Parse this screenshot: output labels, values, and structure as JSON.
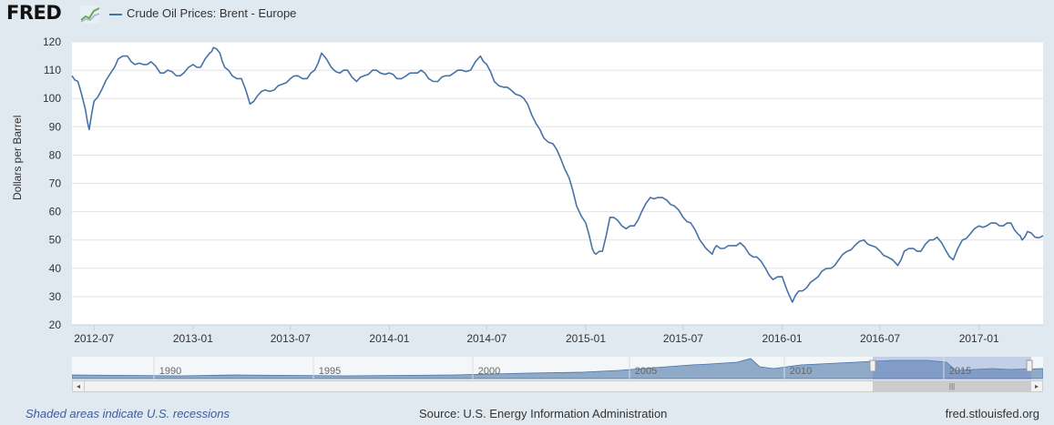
{
  "header": {
    "logo_text": "FRED",
    "legend_label": "Crude Oil Prices: Brent - Europe",
    "series_color": "#4572a7"
  },
  "footer": {
    "recession_note": "Shaded areas indicate U.S. recessions",
    "source": "Source: U.S. Energy Information Administration",
    "site": "fred.stlouisfed.org"
  },
  "navigator": {
    "tick_labels": [
      "1990",
      "1995",
      "2000",
      "2005",
      "2010",
      "2015"
    ],
    "handle_glyph": "|||",
    "left_arrow": "◂",
    "right_arrow": "▸"
  },
  "chart_data": {
    "type": "line",
    "title": "",
    "xlabel": "",
    "ylabel": "Dollars per Barrel",
    "ylim": [
      20,
      120
    ],
    "yticks": [
      20,
      30,
      40,
      50,
      60,
      70,
      80,
      90,
      100,
      110,
      120
    ],
    "xticks": [
      "2012-07",
      "2013-01",
      "2013-07",
      "2014-01",
      "2014-07",
      "2015-01",
      "2015-07",
      "2016-01",
      "2016-07",
      "2017-01"
    ],
    "xlim": [
      "2012-05-21",
      "2017-04-30"
    ],
    "grid": "horizontal",
    "series": [
      {
        "name": "Crude Oil Prices: Brent - Europe",
        "x": [
          "2012-05-21",
          "2012-06-01",
          "2012-06-15",
          "2012-06-22",
          "2012-07-01",
          "2012-07-15",
          "2012-08-01",
          "2012-08-15",
          "2012-09-01",
          "2012-09-15",
          "2012-10-01",
          "2012-10-15",
          "2012-11-01",
          "2012-11-15",
          "2012-12-01",
          "2012-12-15",
          "2013-01-01",
          "2013-01-15",
          "2013-02-01",
          "2013-02-08",
          "2013-02-20",
          "2013-03-01",
          "2013-03-15",
          "2013-04-01",
          "2013-04-17",
          "2013-05-01",
          "2013-05-15",
          "2013-06-01",
          "2013-06-15",
          "2013-07-01",
          "2013-07-15",
          "2013-08-01",
          "2013-08-15",
          "2013-08-28",
          "2013-09-15",
          "2013-10-01",
          "2013-10-15",
          "2013-11-01",
          "2013-11-15",
          "2013-12-01",
          "2013-12-15",
          "2014-01-01",
          "2014-01-15",
          "2014-02-01",
          "2014-02-15",
          "2014-03-01",
          "2014-03-15",
          "2014-04-01",
          "2014-04-15",
          "2014-05-01",
          "2014-05-15",
          "2014-06-01",
          "2014-06-19",
          "2014-07-01",
          "2014-07-15",
          "2014-08-01",
          "2014-08-15",
          "2014-09-01",
          "2014-09-15",
          "2014-10-01",
          "2014-10-15",
          "2014-11-01",
          "2014-11-15",
          "2014-12-01",
          "2014-12-15",
          "2015-01-01",
          "2015-01-13",
          "2015-01-20",
          "2015-02-01",
          "2015-02-15",
          "2015-03-01",
          "2015-03-17",
          "2015-04-01",
          "2015-04-15",
          "2015-05-01",
          "2015-05-15",
          "2015-06-01",
          "2015-06-15",
          "2015-07-01",
          "2015-07-15",
          "2015-08-01",
          "2015-08-24",
          "2015-09-01",
          "2015-09-15",
          "2015-10-01",
          "2015-10-15",
          "2015-11-01",
          "2015-11-15",
          "2015-12-01",
          "2015-12-15",
          "2016-01-01",
          "2016-01-20",
          "2016-02-01",
          "2016-02-15",
          "2016-03-01",
          "2016-03-15",
          "2016-04-01",
          "2016-04-15",
          "2016-05-01",
          "2016-05-15",
          "2016-06-01",
          "2016-06-15",
          "2016-07-01",
          "2016-07-15",
          "2016-08-03",
          "2016-08-15",
          "2016-09-01",
          "2016-09-15",
          "2016-10-01",
          "2016-10-15",
          "2016-11-01",
          "2016-11-14",
          "2016-12-01",
          "2016-12-15",
          "2017-01-01",
          "2017-01-15",
          "2017-02-01",
          "2017-02-15",
          "2017-03-01",
          "2017-03-15",
          "2017-03-22",
          "2017-04-01",
          "2017-04-15",
          "2017-04-30"
        ],
        "values": [
          108,
          106,
          96,
          89,
          99,
          103,
          109,
          114,
          115,
          112,
          112,
          113,
          109,
          110,
          108,
          109,
          112,
          111,
          116,
          118,
          116,
          111,
          108,
          107,
          98,
          101,
          103,
          103,
          105,
          107,
          108,
          107,
          110,
          116,
          111,
          109,
          110,
          106,
          108,
          110,
          109,
          109,
          107,
          108,
          109,
          110,
          107,
          106,
          108,
          109,
          110,
          110,
          115,
          112,
          106,
          104,
          103,
          101,
          98,
          91,
          86,
          84,
          79,
          72,
          62,
          56,
          47,
          45,
          46,
          58,
          57,
          54,
          55,
          60,
          65,
          65,
          64,
          62,
          58,
          56,
          50,
          45,
          48,
          47,
          48,
          49,
          45,
          44,
          40,
          36,
          37,
          28,
          32,
          33,
          36,
          39,
          40,
          43,
          46,
          48,
          50,
          48,
          46,
          44,
          41,
          46,
          47,
          46,
          50,
          51,
          46,
          43,
          50,
          52,
          55,
          55,
          56,
          55,
          56,
          52,
          50,
          53,
          51,
          51.5
        ]
      }
    ]
  }
}
